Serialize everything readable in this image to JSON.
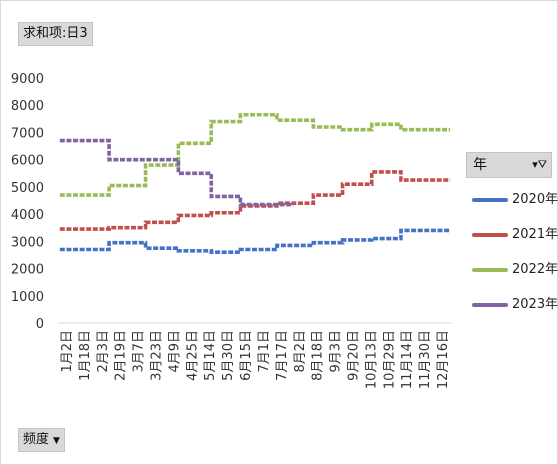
{
  "value_field_label": "求和项:日3",
  "axis_field_label": "频度",
  "legend_field_label": "年",
  "colors": {
    "2020年": "#4472c4",
    "2021年": "#c0504d",
    "2022年": "#9bbb59",
    "2023年": "#8064a2"
  },
  "chart_data": {
    "type": "line",
    "title": "",
    "xlabel": "",
    "ylabel": "",
    "ylim": [
      0,
      9000
    ],
    "yticks": [
      0,
      1000,
      2000,
      3000,
      4000,
      5000,
      6000,
      7000,
      8000,
      9000
    ],
    "grid": false,
    "legend_position": "right",
    "xtick_labels": [
      "1月2日",
      "1月18日",
      "2月3日",
      "2月19日",
      "3月7日",
      "3月23日",
      "4月9日",
      "4月25日",
      "5月14日",
      "5月30日",
      "6月15日",
      "7月1日",
      "7月17日",
      "8月2日",
      "8月18日",
      "9月3日",
      "9月20日",
      "10月13日",
      "10月29日",
      "11月14日",
      "11月30日",
      "12月16日"
    ],
    "series": [
      {
        "name": "2020年",
        "values": [
          2700,
          2700,
          2700,
          2700,
          2700,
          2700,
          2700,
          2700,
          2700,
          2700,
          2700,
          2700,
          2700,
          2700,
          2950,
          2950,
          2950,
          2950,
          2950,
          2950,
          2950,
          2950,
          2950,
          2950,
          2750,
          2750,
          2750,
          2750,
          2750,
          2750,
          2750,
          2750,
          2750,
          2650,
          2650,
          2650,
          2650,
          2650,
          2650,
          2650,
          2650,
          2650,
          2600,
          2600,
          2600,
          2600,
          2600,
          2600,
          2600,
          2600,
          2700,
          2700,
          2700,
          2700,
          2700,
          2700,
          2700,
          2700,
          2700,
          2700,
          2850,
          2850,
          2850,
          2850,
          2850,
          2850,
          2850,
          2850,
          2850,
          2850,
          2950,
          2950,
          2950,
          2950,
          2950,
          2950,
          2950,
          2950,
          3050,
          3050,
          3050,
          3050,
          3050,
          3050,
          3050,
          3050,
          3100,
          3100,
          3100,
          3100,
          3100,
          3100,
          3100,
          3100,
          3400,
          3400,
          3400,
          3400,
          3400,
          3400,
          3400,
          3400,
          3400,
          3400,
          3400,
          3400,
          3400,
          3400
        ]
      },
      {
        "name": "2021年",
        "values": [
          3450,
          3450,
          3450,
          3450,
          3450,
          3450,
          3450,
          3450,
          3450,
          3450,
          3450,
          3450,
          3450,
          3450,
          3500,
          3500,
          3500,
          3500,
          3500,
          3500,
          3500,
          3500,
          3500,
          3500,
          3700,
          3700,
          3700,
          3700,
          3700,
          3700,
          3700,
          3700,
          3700,
          3950,
          3950,
          3950,
          3950,
          3950,
          3950,
          3950,
          3950,
          3950,
          4050,
          4050,
          4050,
          4050,
          4050,
          4050,
          4050,
          4050,
          4300,
          4300,
          4300,
          4300,
          4300,
          4300,
          4300,
          4300,
          4300,
          4300,
          4400,
          4400,
          4400,
          4400,
          4400,
          4400,
          4400,
          4400,
          4400,
          4400,
          4700,
          4700,
          4700,
          4700,
          4700,
          4700,
          4700,
          4700,
          5100,
          5100,
          5100,
          5100,
          5100,
          5100,
          5100,
          5100,
          5550,
          5550,
          5550,
          5550,
          5550,
          5550,
          5550,
          5550,
          5250,
          5250,
          5250,
          5250,
          5250,
          5250,
          5250,
          5250,
          5250,
          5250,
          5250,
          5250,
          5250,
          5250
        ]
      },
      {
        "name": "2022年",
        "values": [
          4700,
          4700,
          4700,
          4700,
          4700,
          4700,
          4700,
          4700,
          4700,
          4700,
          4700,
          4700,
          4700,
          4700,
          5050,
          5050,
          5050,
          5050,
          5050,
          5050,
          5050,
          5050,
          5050,
          5050,
          5800,
          5800,
          5800,
          5800,
          5800,
          5800,
          5800,
          5800,
          5800,
          6600,
          6600,
          6600,
          6600,
          6600,
          6600,
          6600,
          6600,
          6600,
          7400,
          7400,
          7400,
          7400,
          7400,
          7400,
          7400,
          7400,
          7650,
          7650,
          7650,
          7650,
          7650,
          7650,
          7650,
          7650,
          7650,
          7650,
          7450,
          7450,
          7450,
          7450,
          7450,
          7450,
          7450,
          7450,
          7450,
          7450,
          7200,
          7200,
          7200,
          7200,
          7200,
          7200,
          7200,
          7200,
          7100,
          7100,
          7100,
          7100,
          7100,
          7100,
          7100,
          7100,
          7300,
          7300,
          7300,
          7300,
          7300,
          7300,
          7300,
          7300,
          7100,
          7100,
          7100,
          7100,
          7100,
          7100,
          7100,
          7100,
          7100,
          7100,
          7100,
          7100,
          7100,
          7100
        ]
      },
      {
        "name": "2023年",
        "values": [
          6700,
          6700,
          6700,
          6700,
          6700,
          6700,
          6700,
          6700,
          6700,
          6700,
          6700,
          6700,
          6700,
          6700,
          6000,
          6000,
          6000,
          6000,
          6000,
          6000,
          6000,
          6000,
          6000,
          6000,
          6000,
          6000,
          6000,
          6000,
          6000,
          6000,
          6000,
          6000,
          6000,
          5500,
          5500,
          5500,
          5500,
          5500,
          5500,
          5500,
          5500,
          5500,
          4650,
          4650,
          4650,
          4650,
          4650,
          4650,
          4650,
          4650,
          4350,
          4350,
          4350,
          4350,
          4350,
          4350,
          4350,
          4350,
          4350,
          4350,
          4350,
          4350,
          4350,
          4350,
          4350
        ]
      }
    ]
  }
}
